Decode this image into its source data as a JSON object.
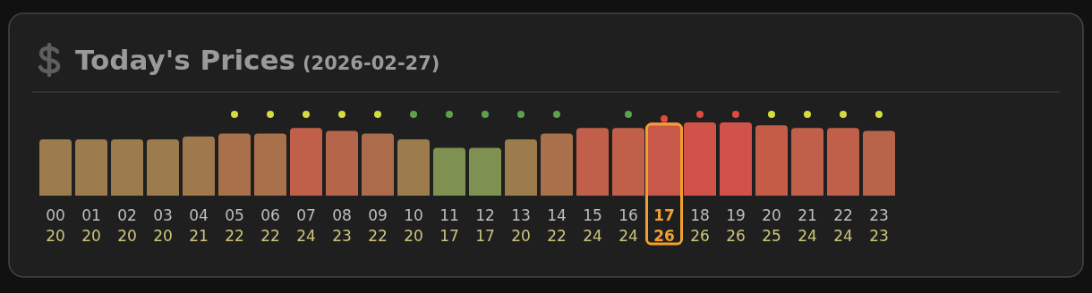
{
  "chart_data": {
    "type": "bar",
    "title": "Today's Prices",
    "subtitle": "(2026-02-27)",
    "categories": [
      "00",
      "01",
      "02",
      "03",
      "04",
      "05",
      "06",
      "07",
      "08",
      "09",
      "10",
      "11",
      "12",
      "13",
      "14",
      "15",
      "16",
      "17",
      "18",
      "19",
      "20",
      "21",
      "22",
      "23"
    ],
    "values": [
      20,
      20,
      20,
      20,
      21,
      22,
      22,
      24,
      23,
      22,
      20,
      17,
      17,
      20,
      22,
      24,
      24,
      26,
      26,
      26,
      25,
      24,
      24,
      23
    ],
    "colors": [
      "#9c7b4c",
      "#9c7b4c",
      "#9c7b4c",
      "#9c7b4c",
      "#9f784c",
      "#a8704b",
      "#a8704b",
      "#c0604a",
      "#b5664a",
      "#ab6c4b",
      "#9c7b4c",
      "#7f9150",
      "#7f9150",
      "#9c7b4c",
      "#a8704b",
      "#c0604a",
      "#c0604a",
      "#c8584a",
      "#d05248",
      "#d05248",
      "#c45c48",
      "#c0604a",
      "#c0604a",
      "#b8644a"
    ],
    "data_labels": true
  }
}
